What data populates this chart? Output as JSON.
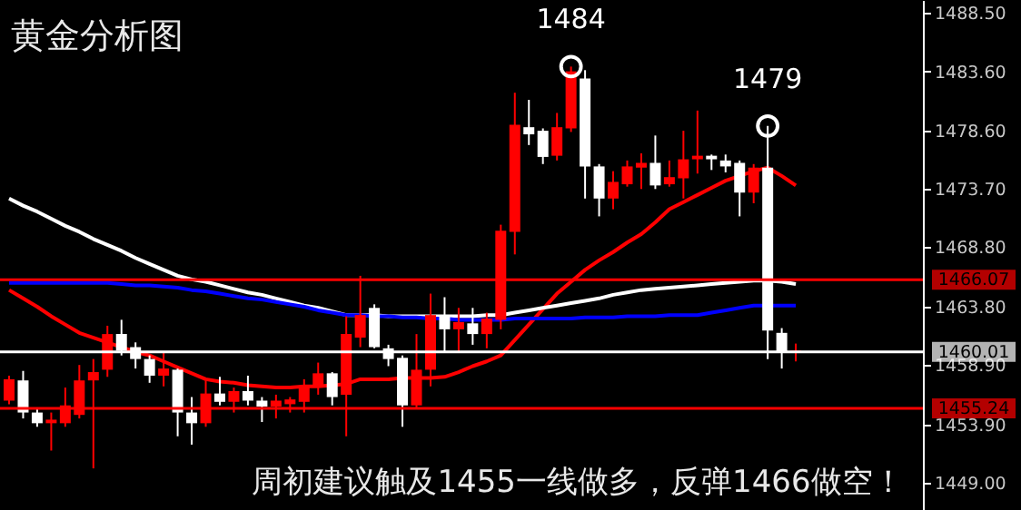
{
  "chart_data": {
    "type": "candlestick",
    "title": "黄金分析图",
    "categories": [
      null,
      null,
      null,
      null,
      null,
      null,
      null,
      null,
      null,
      null,
      null,
      null,
      null,
      null,
      null,
      null,
      null,
      null,
      null,
      null,
      null,
      null,
      null,
      null,
      null,
      null,
      null,
      null,
      null,
      null,
      null,
      null,
      null,
      null,
      null,
      null,
      null,
      null,
      null,
      null,
      null,
      null,
      null,
      null,
      null,
      null,
      null,
      null,
      null,
      null,
      null,
      null,
      null,
      null,
      null,
      null,
      null
    ],
    "ohlc": [
      [
        1455.9,
        1458.0,
        1455.6,
        1457.7
      ],
      [
        1457.6,
        1458.4,
        1454.4,
        1454.9
      ],
      [
        1454.9,
        1455.3,
        1453.7,
        1454.0
      ],
      [
        1454.0,
        1454.9,
        1451.7,
        1454.3
      ],
      [
        1454.0,
        1457.0,
        1453.7,
        1455.5
      ],
      [
        1454.7,
        1458.9,
        1454.4,
        1457.6
      ],
      [
        1457.6,
        1459.4,
        1450.2,
        1458.3
      ],
      [
        1458.5,
        1462.2,
        1457.9,
        1461.5
      ],
      [
        1461.5,
        1462.7,
        1459.7,
        1460.1
      ],
      [
        1460.4,
        1460.8,
        1458.6,
        1459.4
      ],
      [
        1459.4,
        1459.7,
        1457.4,
        1458.0
      ],
      [
        1458.0,
        1460.0,
        1457.1,
        1458.6
      ],
      [
        1458.5,
        1458.6,
        1452.9,
        1454.9
      ],
      [
        1454.9,
        1456.2,
        1452.2,
        1454.0
      ],
      [
        1454.0,
        1457.6,
        1453.7,
        1456.5
      ],
      [
        1456.5,
        1457.9,
        1455.5,
        1455.8
      ],
      [
        1455.8,
        1457.0,
        1454.9,
        1456.7
      ],
      [
        1456.7,
        1458.0,
        1455.5,
        1455.9
      ],
      [
        1455.9,
        1456.2,
        1454.1,
        1455.4
      ],
      [
        1455.4,
        1456.4,
        1454.4,
        1455.9
      ],
      [
        1455.6,
        1456.2,
        1454.9,
        1456.0
      ],
      [
        1455.8,
        1457.7,
        1454.9,
        1457.1
      ],
      [
        1457.0,
        1459.1,
        1456.4,
        1458.2
      ],
      [
        1458.2,
        1458.3,
        1455.5,
        1456.2
      ],
      [
        1456.4,
        1463.0,
        1452.9,
        1461.5
      ],
      [
        1461.2,
        1466.4,
        1460.4,
        1463.1
      ],
      [
        1463.7,
        1464.0,
        1460.3,
        1460.4
      ],
      [
        1460.3,
        1460.6,
        1458.8,
        1459.4
      ],
      [
        1459.5,
        1459.7,
        1453.7,
        1455.5
      ],
      [
        1455.5,
        1461.5,
        1455.3,
        1458.5
      ],
      [
        1458.5,
        1464.9,
        1457.1,
        1463.1
      ],
      [
        1463.1,
        1464.6,
        1460.0,
        1461.9
      ],
      [
        1461.9,
        1463.7,
        1460.0,
        1462.5
      ],
      [
        1462.4,
        1463.7,
        1460.6,
        1461.5
      ],
      [
        1461.5,
        1463.3,
        1460.3,
        1462.8
      ],
      [
        1462.7,
        1470.7,
        1461.9,
        1470.2
      ],
      [
        1470.1,
        1481.8,
        1468.2,
        1479.1
      ],
      [
        1478.9,
        1481.2,
        1477.4,
        1478.3
      ],
      [
        1478.6,
        1478.8,
        1475.8,
        1476.4
      ],
      [
        1476.5,
        1480.1,
        1476.1,
        1478.9
      ],
      [
        1478.8,
        1484.0,
        1478.5,
        1483.6
      ],
      [
        1483.0,
        1483.7,
        1472.9,
        1475.6
      ],
      [
        1475.6,
        1475.8,
        1471.4,
        1472.9
      ],
      [
        1472.9,
        1475.2,
        1472.0,
        1474.3
      ],
      [
        1474.1,
        1476.1,
        1473.9,
        1475.6
      ],
      [
        1475.5,
        1476.7,
        1473.7,
        1475.9
      ],
      [
        1475.9,
        1478.2,
        1473.7,
        1474.0
      ],
      [
        1474.1,
        1476.1,
        1473.9,
        1474.7
      ],
      [
        1474.6,
        1478.6,
        1472.9,
        1476.2
      ],
      [
        1476.2,
        1480.3,
        1475.0,
        1476.5
      ],
      [
        1476.5,
        1476.6,
        1475.3,
        1476.2
      ],
      [
        1476.1,
        1476.6,
        1475.1,
        1475.6
      ],
      [
        1475.9,
        1476.1,
        1471.4,
        1473.4
      ],
      [
        1473.4,
        1475.8,
        1472.5,
        1475.5
      ],
      [
        1475.5,
        1479.0,
        1459.4,
        1461.8
      ],
      [
        1461.6,
        1462.0,
        1458.6,
        1460.0
      ],
      [
        1460.0,
        1460.7,
        1459.2,
        1460.1
      ]
    ],
    "colors": [
      "#ff0000",
      "#ffffff",
      "#ffffff",
      "#ff0000",
      "#ff0000",
      "#ff0000",
      "#ff0000",
      "#ff0000",
      "#ffffff",
      "#ffffff",
      "#ffffff",
      "#ff0000",
      "#ffffff",
      "#ffffff",
      "#ff0000",
      "#ffffff",
      "#ff0000",
      "#ffffff",
      "#ffffff",
      "#ff0000",
      "#ff0000",
      "#ff0000",
      "#ff0000",
      "#ffffff",
      "#ff0000",
      "#ff0000",
      "#ffffff",
      "#ffffff",
      "#ffffff",
      "#ff0000",
      "#ff0000",
      "#ffffff",
      "#ff0000",
      "#ffffff",
      "#ff0000",
      "#ff0000",
      "#ff0000",
      "#ffffff",
      "#ffffff",
      "#ff0000",
      "#ff0000",
      "#ffffff",
      "#ffffff",
      "#ff0000",
      "#ff0000",
      "#ff0000",
      "#ffffff",
      "#ff0000",
      "#ff0000",
      "#ff0000",
      "#ffffff",
      "#ffffff",
      "#ffffff",
      "#ff0000",
      "#ffffff",
      "#ffffff",
      "#ff0000"
    ],
    "series": [
      {
        "type": "line",
        "color": "#ff0000",
        "values": [
          1465.2,
          1464.5,
          1463.8,
          1463.0,
          1462.3,
          1461.6,
          1461.2,
          1460.8,
          1460.4,
          1460.0,
          1459.7,
          1459.2,
          1458.7,
          1458.2,
          1457.7,
          1457.5,
          1457.4,
          1457.2,
          1457.1,
          1457.0,
          1457.0,
          1457.1,
          1457.1,
          1457.2,
          1457.3,
          1457.7,
          1457.7,
          1457.7,
          1457.8,
          1457.8,
          1457.8,
          1457.9,
          1458.3,
          1458.8,
          1459.2,
          1459.7,
          1461.0,
          1462.3,
          1463.6,
          1464.9,
          1465.9,
          1466.9,
          1467.7,
          1468.4,
          1469.2,
          1469.9,
          1470.9,
          1472.0,
          1472.6,
          1473.2,
          1473.8,
          1474.4,
          1474.8,
          1475.2,
          1475.5,
          1474.8,
          1474.0
        ]
      },
      {
        "type": "line",
        "color": "#ffffff",
        "values": [
          1472.9,
          1472.3,
          1471.8,
          1471.2,
          1470.6,
          1470.1,
          1469.5,
          1469.0,
          1468.5,
          1467.9,
          1467.4,
          1466.9,
          1466.4,
          1466.1,
          1465.9,
          1465.6,
          1465.3,
          1465.0,
          1464.8,
          1464.5,
          1464.2,
          1463.9,
          1463.7,
          1463.4,
          1463.1,
          1463.1,
          1463.1,
          1463.0,
          1463.0,
          1463.0,
          1463.0,
          1463.0,
          1463.0,
          1463.0,
          1463.1,
          1463.1,
          1463.3,
          1463.5,
          1463.7,
          1463.9,
          1464.1,
          1464.3,
          1464.5,
          1464.8,
          1465.0,
          1465.2,
          1465.3,
          1465.4,
          1465.5,
          1465.6,
          1465.7,
          1465.8,
          1465.9,
          1466.0,
          1466.0,
          1465.9,
          1465.7
        ]
      },
      {
        "type": "line",
        "color": "#0000ff",
        "values": [
          1465.8,
          1465.8,
          1465.8,
          1465.8,
          1465.8,
          1465.8,
          1465.8,
          1465.8,
          1465.7,
          1465.6,
          1465.6,
          1465.5,
          1465.4,
          1465.2,
          1465.1,
          1464.9,
          1464.7,
          1464.5,
          1464.4,
          1464.2,
          1464.0,
          1463.8,
          1463.5,
          1463.3,
          1463.1,
          1463.1,
          1463.0,
          1463.0,
          1462.9,
          1462.9,
          1462.8,
          1462.8,
          1462.7,
          1462.7,
          1462.7,
          1462.7,
          1462.8,
          1462.8,
          1462.8,
          1462.8,
          1462.8,
          1462.9,
          1462.9,
          1462.9,
          1463.0,
          1463.0,
          1463.0,
          1463.1,
          1463.1,
          1463.1,
          1463.3,
          1463.5,
          1463.7,
          1463.9,
          1463.9,
          1463.9,
          1463.9
        ]
      }
    ],
    "ref_lines": [
      {
        "axis": "y",
        "value": 1466.07,
        "label": "1466.07",
        "color": "#ff0000"
      },
      {
        "axis": "y",
        "value": 1460.01,
        "label": "1460.01",
        "color": "#ffffff"
      },
      {
        "axis": "y",
        "value": 1455.24,
        "label": "1455.24",
        "color": "#ff0000"
      }
    ],
    "annotations": [
      {
        "text": "1484",
        "y": 1484.0
      },
      {
        "text": "1479",
        "y": 1479.0
      },
      "周初建议触及1455一线做多，反弹1466做空！"
    ],
    "ylim": [
      1446.7,
      1489.6
    ],
    "yticks": [
      {
        "value": 1449,
        "label": "1449.00"
      },
      {
        "value": 1453.9,
        "label": "1453.90"
      },
      {
        "value": 1458.9,
        "label": "1458.90"
      },
      {
        "value": 1463.8,
        "label": "1463.80"
      },
      {
        "value": 1468.8,
        "label": "1468.80"
      },
      {
        "value": 1473.7,
        "label": "1473.70"
      },
      {
        "value": 1478.6,
        "label": "1478.60"
      },
      {
        "value": 1483.6,
        "label": "1483.60"
      },
      {
        "value": 1488.5,
        "label": "1488.50"
      }
    ],
    "grid": false
  }
}
